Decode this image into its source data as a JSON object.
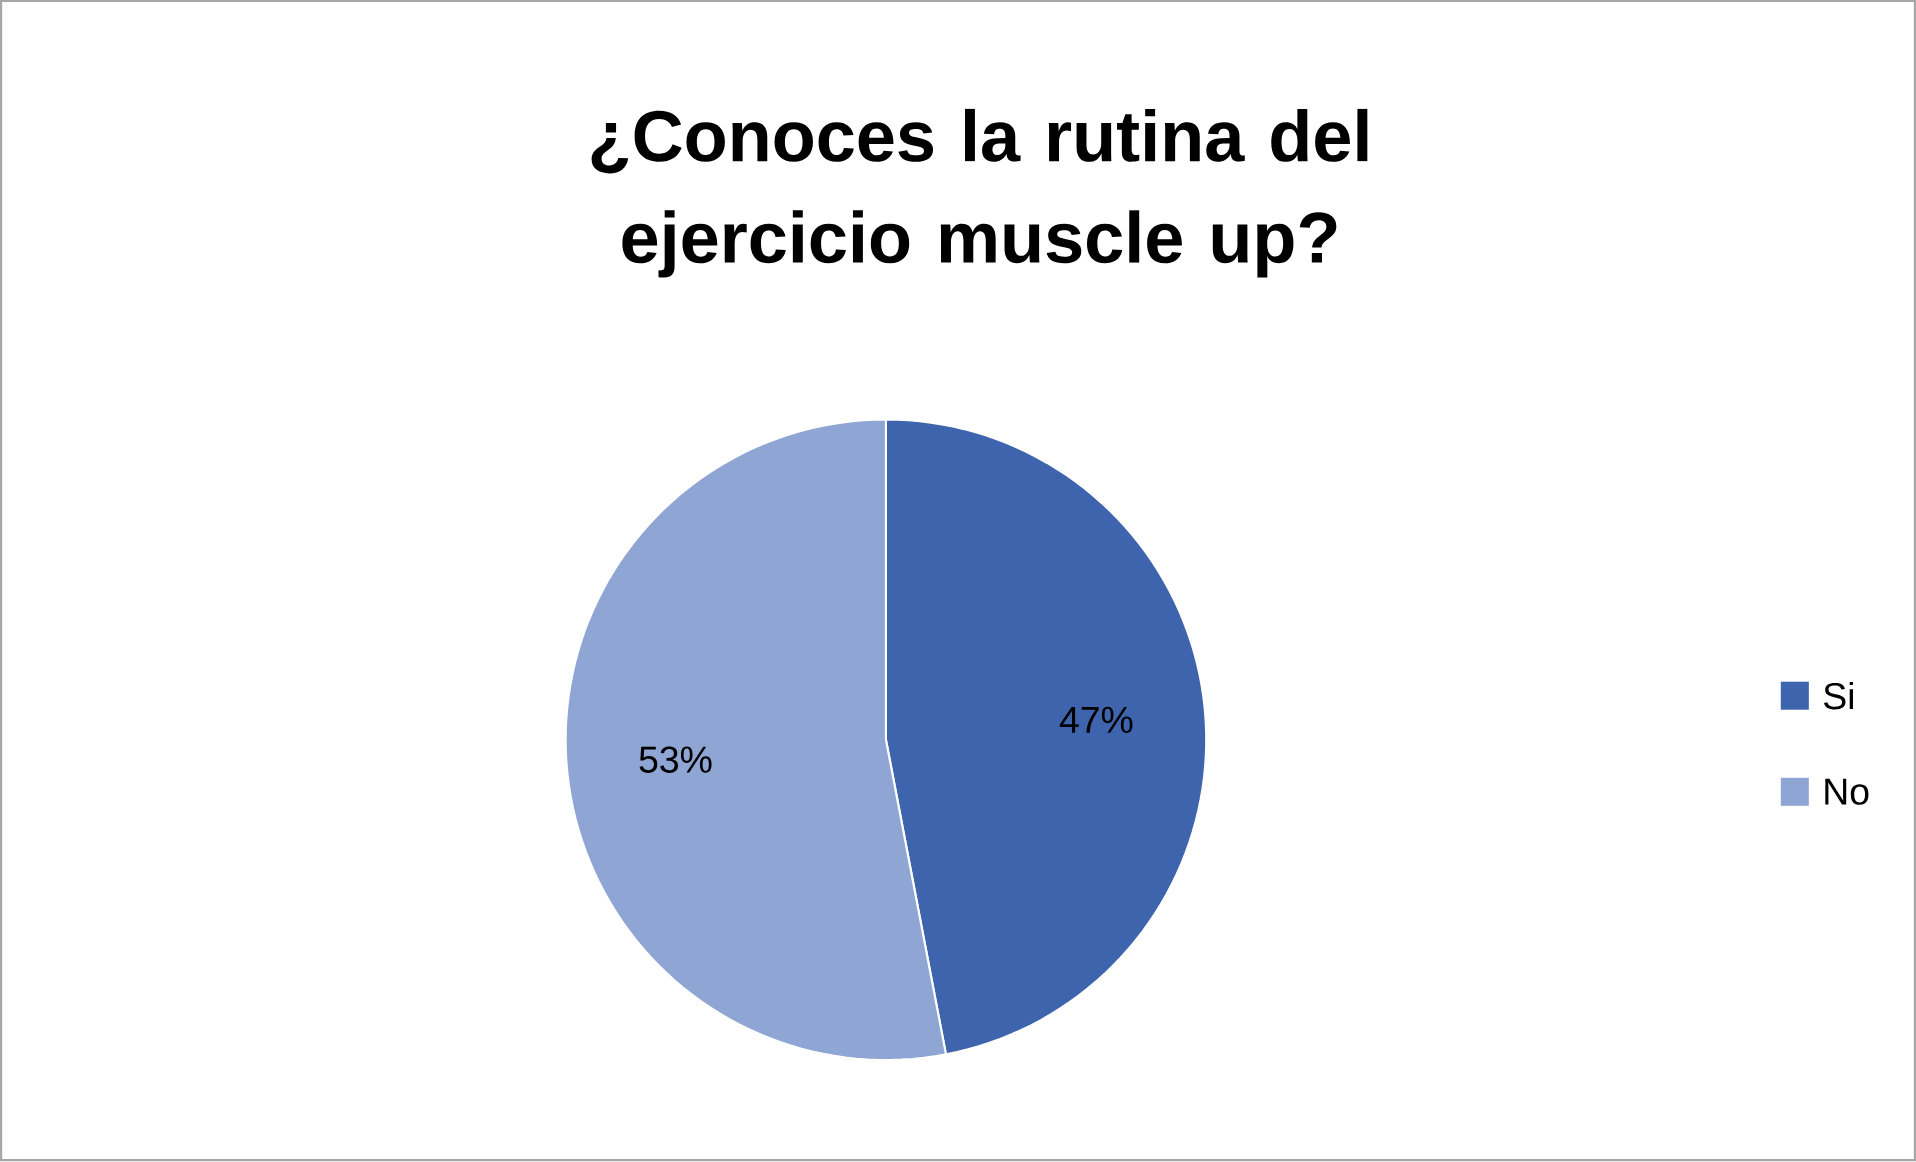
{
  "chart_data": {
    "type": "pie",
    "title": "¿Conoces la rutina del ejercicio muscle up?",
    "categories": [
      "Si",
      "No"
    ],
    "values": [
      47,
      53
    ],
    "value_labels": [
      "47%",
      "53%"
    ],
    "colors": [
      "#3d64ad",
      "#8fa5d4"
    ],
    "legend": "right"
  }
}
